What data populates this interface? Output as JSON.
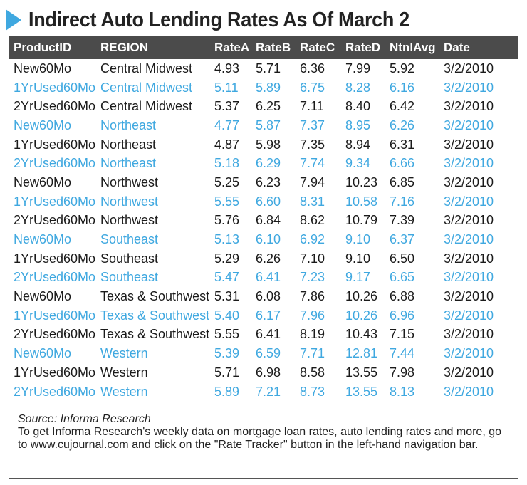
{
  "title": "Indirect Auto Lending Rates As Of March 2",
  "table": {
    "headers": [
      "ProductID",
      "REGION",
      "RateA",
      "RateB",
      "RateC",
      "RateD",
      "NtnlAvg",
      "Date"
    ],
    "rows": [
      [
        "New60Mo",
        "Central Midwest",
        "4.93",
        "5.71",
        "6.36",
        "7.99",
        "5.92",
        "3/2/2010"
      ],
      [
        "1YrUsed60Mo",
        "Central Midwest",
        "5.11",
        "5.89",
        "6.75",
        "8.28",
        "6.16",
        "3/2/2010"
      ],
      [
        "2YrUsed60Mo",
        "Central Midwest",
        "5.37",
        "6.25",
        "7.11",
        "8.40",
        "6.42",
        "3/2/2010"
      ],
      [
        "New60Mo",
        "Northeast",
        "4.77",
        "5.87",
        "7.37",
        "8.95",
        "6.26",
        "3/2/2010"
      ],
      [
        "1YrUsed60Mo",
        "Northeast",
        "4.87",
        "5.98",
        "7.35",
        "8.94",
        "6.31",
        "3/2/2010"
      ],
      [
        "2YrUsed60Mo",
        "Northeast",
        "5.18",
        "6.29",
        "7.74",
        "9.34",
        "6.66",
        "3/2/2010"
      ],
      [
        "New60Mo",
        "Northwest",
        "5.25",
        "6.23",
        "7.94",
        "10.23",
        "6.85",
        "3/2/2010"
      ],
      [
        "1YrUsed60Mo",
        "Northwest",
        "5.55",
        "6.60",
        "8.31",
        "10.58",
        "7.16",
        "3/2/2010"
      ],
      [
        "2YrUsed60Mo",
        "Northwest",
        "5.76",
        "6.84",
        "8.62",
        "10.79",
        "7.39",
        "3/2/2010"
      ],
      [
        "New60Mo",
        "Southeast",
        "5.13",
        "6.10",
        "6.92",
        "9.10",
        "6.37",
        "3/2/2010"
      ],
      [
        "1YrUsed60Mo",
        "Southeast",
        "5.29",
        "6.26",
        "7.10",
        "9.10",
        "6.50",
        "3/2/2010"
      ],
      [
        "2YrUsed60Mo",
        "Southeast",
        "5.47",
        "6.41",
        "7.23",
        "9.17",
        "6.65",
        "3/2/2010"
      ],
      [
        "New60Mo",
        "Texas & Southwest",
        "5.31",
        "6.08",
        "7.86",
        "10.26",
        "6.88",
        "3/2/2010"
      ],
      [
        "1YrUsed60Mo",
        "Texas & Southwest",
        "5.40",
        "6.17",
        "7.96",
        "10.26",
        "6.96",
        "3/2/2010"
      ],
      [
        "2YrUsed60Mo",
        "Texas & Southwest",
        "5.55",
        "6.41",
        "8.19",
        "10.43",
        "7.15",
        "3/2/2010"
      ],
      [
        "New60Mo",
        "Western",
        "5.39",
        "6.59",
        "7.71",
        "12.81",
        "7.44",
        "3/2/2010"
      ],
      [
        "1YrUsed60Mo",
        "Western",
        "5.71",
        "6.98",
        "8.58",
        "13.55",
        "7.98",
        "3/2/2010"
      ],
      [
        "2YrUsed60Mo",
        "Western",
        "5.89",
        "7.21",
        "8.73",
        "13.55",
        "8.13",
        "3/2/2010"
      ]
    ]
  },
  "footer": {
    "source": "Source: Informa Research",
    "note": "To get Informa Research's weekly data on mortgage loan rates, auto lending rates and more, go to www.cujournal.com and click on the \"Rate Tracker\" button in the left-hand navigation bar."
  },
  "colors": {
    "accent": "#3fa8e0",
    "header_bg": "#4b4b4b",
    "text": "#1a1a1a"
  }
}
